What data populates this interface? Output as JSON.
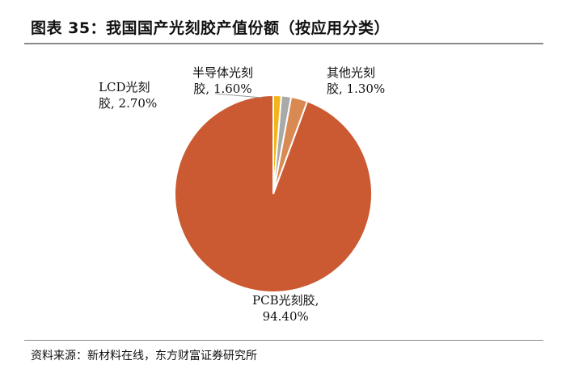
{
  "title": "图表 35：我国国产光刻胶产值份额（按应用分类）",
  "source": "资料来源：新材料在线，东方财富证券研究所",
  "chart_data": {
    "type": "pie",
    "title": "图表 35：我国国产光刻胶产值份额（按应用分类）",
    "slices": [
      {
        "label": "PCB光刻胶,",
        "value_text": "94.40%",
        "value": 94.4,
        "color": "#CB5A32"
      },
      {
        "label": "LCD光刻",
        "label_cont": "胶, ",
        "value_text": "2.70%",
        "value": 2.7,
        "color": "#D98A52"
      },
      {
        "label": "半导体光刻",
        "label_cont": "胶, ",
        "value_text": "1.60%",
        "value": 1.6,
        "color": "#A9A9A9"
      },
      {
        "label": "其他光刻",
        "label_cont": "胶, ",
        "value_text": "1.30%",
        "value": 1.3,
        "color": "#F2B61C"
      }
    ],
    "start_angle_deg": 0,
    "direction": "counterclockwise",
    "legend": "none"
  }
}
